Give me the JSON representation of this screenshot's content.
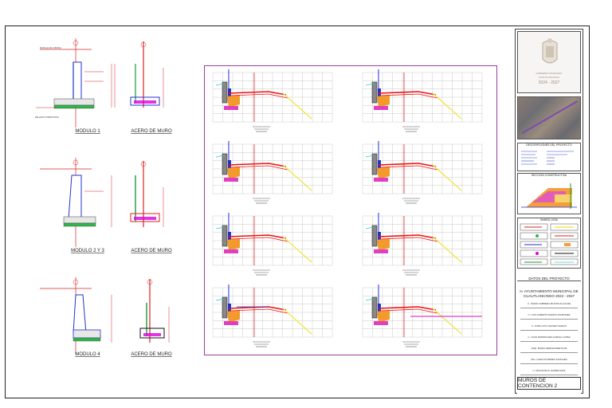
{
  "logo": {
    "line1": "GOBIERNO MUNICIPAL",
    "line2": "CUAUTLANCINGO",
    "line3": "2024 - 2027"
  },
  "titleblock": {
    "section_descripcion": "DESCRIPCIONES DEL PROYECTO",
    "section_seccion": "SECCION CONSTRUCTIVA",
    "section_simbologia": "SIMBOLOGIA",
    "section_datos": "DATOS DEL PROYECTO",
    "project_line1": "H. AYUNTAMIENTO MUNICIPAL DE",
    "project_line2": "CUAUTLANCINGO 2024 - 2027",
    "rows": [
      "C. OMAR CABRERA MUNOZ ALCALDE",
      "C. LUIS ALBERTO RAMOS MARTINEZ",
      "C. JOSE LUIS CHAVEZ GARCIA",
      "C. JUAN RODRIGUEZ GARCIA LOPEZ",
      "ARQ. MARIA HERNANDEZ RUIZ",
      "ING. CARLOS PEREZ SANCHEZ",
      "C. FRANCISCO GOMEZ DIAZ"
    ],
    "sheet_title": "MUROS DE CONTENCION 2"
  },
  "details": {
    "captions": [
      "MODULO 1",
      "MODULO 2 Y 3",
      "MODULO 4"
    ],
    "sub_caption": "ACERO DE MURO"
  }
}
